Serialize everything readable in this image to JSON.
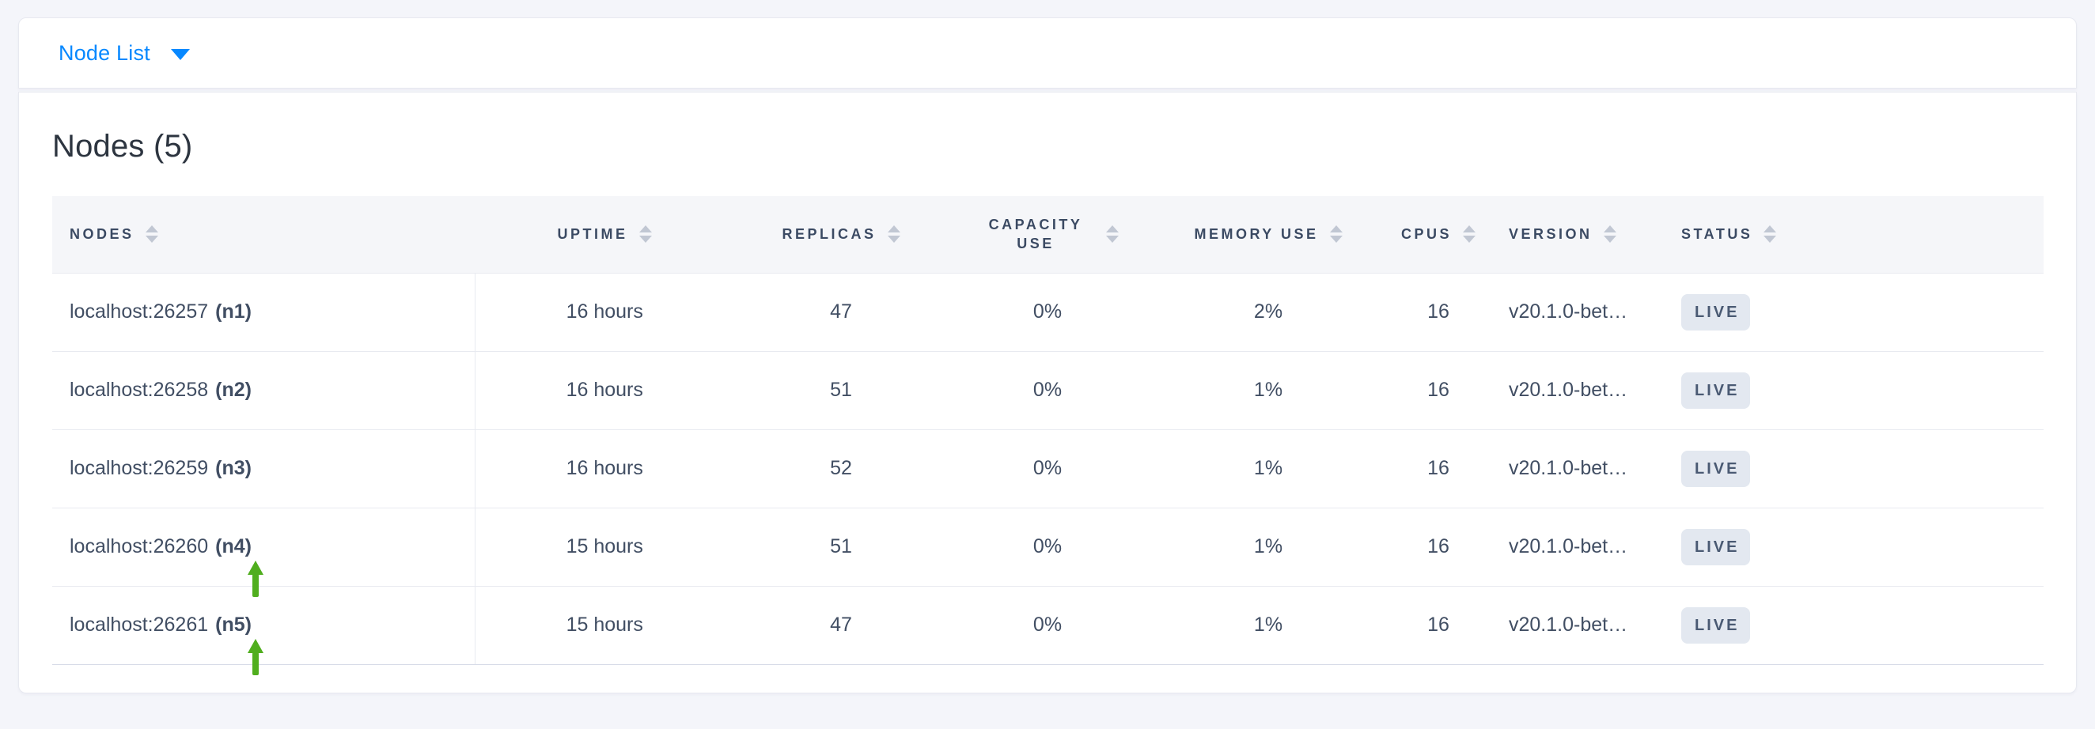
{
  "topbar": {
    "view_selector": {
      "label": "Node List",
      "icon": "caret-down-icon"
    }
  },
  "main": {
    "heading": "Nodes (5)",
    "table": {
      "columns": [
        {
          "key": "nodes",
          "label": "NODES"
        },
        {
          "key": "uptime",
          "label": "UPTIME"
        },
        {
          "key": "replicas",
          "label": "REPLICAS"
        },
        {
          "key": "capacity_use",
          "label": "CAPACITY USE"
        },
        {
          "key": "memory_use",
          "label": "MEMORY USE"
        },
        {
          "key": "cpus",
          "label": "CPUS"
        },
        {
          "key": "version",
          "label": "VERSION"
        },
        {
          "key": "status",
          "label": "STATUS"
        }
      ],
      "rows": [
        {
          "address": "localhost:26257",
          "node_id": "(n1)",
          "uptime": "16 hours",
          "replicas": "47",
          "capacity_use": "0%",
          "memory_use": "2%",
          "cpus": "16",
          "version": "v20.1.0-bet…",
          "status": "LIVE",
          "highlight_arrow": false
        },
        {
          "address": "localhost:26258",
          "node_id": "(n2)",
          "uptime": "16 hours",
          "replicas": "51",
          "capacity_use": "0%",
          "memory_use": "1%",
          "cpus": "16",
          "version": "v20.1.0-bet…",
          "status": "LIVE",
          "highlight_arrow": false
        },
        {
          "address": "localhost:26259",
          "node_id": "(n3)",
          "uptime": "16 hours",
          "replicas": "52",
          "capacity_use": "0%",
          "memory_use": "1%",
          "cpus": "16",
          "version": "v20.1.0-bet…",
          "status": "LIVE",
          "highlight_arrow": false
        },
        {
          "address": "localhost:26260",
          "node_id": "(n4)",
          "uptime": "15 hours",
          "replicas": "51",
          "capacity_use": "0%",
          "memory_use": "1%",
          "cpus": "16",
          "version": "v20.1.0-bet…",
          "status": "LIVE",
          "highlight_arrow": true
        },
        {
          "address": "localhost:26261",
          "node_id": "(n5)",
          "uptime": "15 hours",
          "replicas": "47",
          "capacity_use": "0%",
          "memory_use": "1%",
          "cpus": "16",
          "version": "v20.1.0-bet…",
          "status": "LIVE",
          "highlight_arrow": true
        }
      ]
    }
  },
  "colors": {
    "accent_blue": "#0788ff",
    "arrow_green": "#50ae1e",
    "status_badge_bg": "#e3e8f0",
    "header_text": "#3b4a63",
    "cell_text": "#414e63",
    "page_bg": "#f4f5fa"
  }
}
